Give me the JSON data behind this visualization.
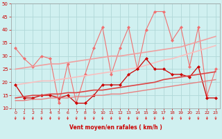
{
  "x": [
    0,
    1,
    2,
    3,
    4,
    5,
    6,
    7,
    8,
    9,
    10,
    11,
    12,
    13,
    14,
    15,
    16,
    17,
    18,
    19,
    20,
    21,
    22,
    23
  ],
  "series": [
    {
      "name": "rafales_max",
      "values": [
        33,
        29,
        26,
        30,
        29,
        12,
        27,
        12,
        23,
        33,
        41,
        23,
        33,
        41,
        25,
        40,
        47,
        47,
        36,
        41,
        26,
        41,
        15,
        25
      ],
      "color": "#f07070",
      "lw": 0.8,
      "marker": "D",
      "ms": 2.0
    },
    {
      "name": "rafales_trend1",
      "values": [
        25,
        25.5,
        26,
        26.5,
        27,
        27,
        27.5,
        28,
        28.5,
        29,
        29.5,
        30,
        30,
        30.5,
        31,
        31.5,
        32,
        32.5,
        33,
        33.5,
        34.5,
        35.5,
        36.5,
        37.5
      ],
      "color": "#f0a0a0",
      "lw": 1.2,
      "marker": null,
      "ms": 0
    },
    {
      "name": "rafales_trend2",
      "values": [
        19,
        19.5,
        20,
        20.5,
        20.5,
        21,
        21.5,
        22,
        22.5,
        23,
        23.5,
        24,
        24.5,
        25,
        25.5,
        26.5,
        27.5,
        28.5,
        29,
        30,
        31,
        32,
        33,
        34
      ],
      "color": "#f8c0c0",
      "lw": 1.2,
      "marker": null,
      "ms": 0
    },
    {
      "name": "vent_moyen",
      "values": [
        19,
        14,
        14,
        15,
        15,
        14,
        15,
        12,
        12,
        15,
        19,
        19,
        19,
        23,
        25,
        29,
        25,
        25,
        23,
        23,
        22,
        26,
        14,
        14
      ],
      "color": "#cc0000",
      "lw": 0.9,
      "marker": "D",
      "ms": 2.0
    },
    {
      "name": "vent_trend1",
      "values": [
        14,
        14.5,
        15,
        15,
        15.5,
        15.5,
        16,
        16,
        16.5,
        17,
        17,
        17.5,
        18,
        18.5,
        19,
        19.5,
        20,
        21,
        21.5,
        22,
        22.5,
        23,
        23.5,
        24
      ],
      "color": "#dd4444",
      "lw": 1.2,
      "marker": null,
      "ms": 0
    },
    {
      "name": "vent_trend2",
      "values": [
        13,
        13,
        13.5,
        13.5,
        14,
        14,
        14,
        14.5,
        14.5,
        15,
        15,
        15.5,
        15.5,
        16,
        16.5,
        17,
        17.5,
        18,
        18.5,
        19,
        19.5,
        20,
        20.5,
        21
      ],
      "color": "#e88080",
      "lw": 1.0,
      "marker": null,
      "ms": 0
    }
  ],
  "xlim": [
    -0.5,
    23.5
  ],
  "ylim": [
    10,
    50
  ],
  "yticks": [
    10,
    15,
    20,
    25,
    30,
    35,
    40,
    45,
    50
  ],
  "xticks": [
    0,
    1,
    2,
    3,
    4,
    5,
    6,
    7,
    8,
    9,
    10,
    11,
    12,
    13,
    14,
    15,
    16,
    17,
    18,
    19,
    20,
    21,
    22,
    23
  ],
  "xlabel": "Vent moyen/en rafales ( km/h )",
  "bgcolor": "#d0f0f0",
  "grid_color": "#b0d8d8",
  "tick_color": "#cc0000",
  "label_color": "#cc0000",
  "arrow_color": "#dd3333",
  "spine_color": "#999999"
}
